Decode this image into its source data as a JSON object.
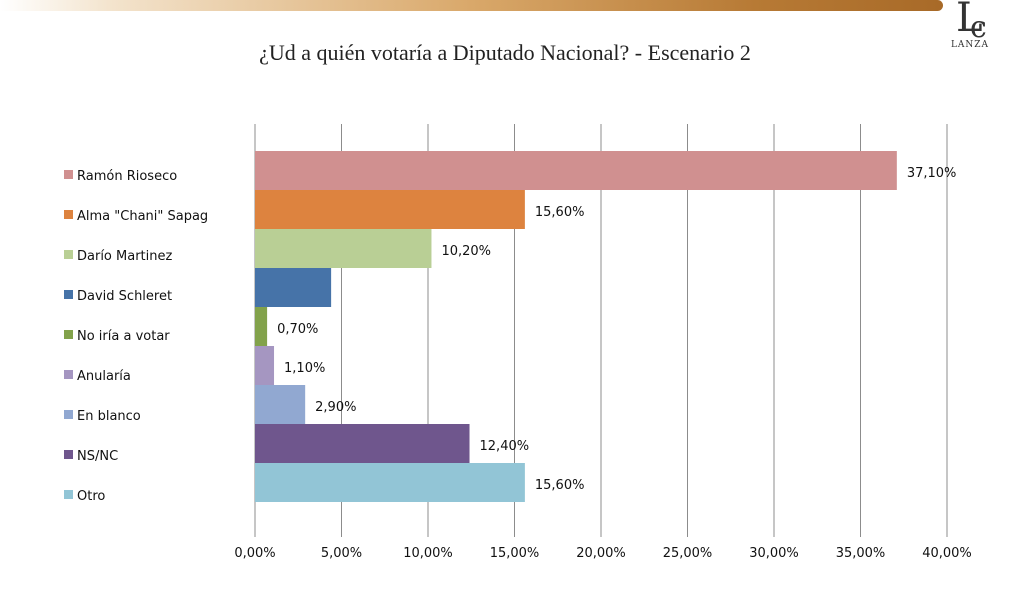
{
  "logo": {
    "text": "LANZA"
  },
  "chart_data": {
    "type": "bar",
    "orientation": "horizontal",
    "title": "¿Ud a quién votaría a Diputado Nacional? - Escenario 2",
    "categories": [
      "Ramón Rioseco",
      "Alma \"Chani\" Sapag",
      "Darío Martinez",
      "David Schleret",
      "No iría a votar",
      "Anularía",
      "En blanco",
      "NS/NC",
      "Otro"
    ],
    "values": [
      37.1,
      15.6,
      10.2,
      4.4,
      0.7,
      1.1,
      2.9,
      12.4,
      15.6
    ],
    "data_labels": [
      "37,10%",
      "15,60%",
      "10,20%",
      "",
      "0,70%",
      "1,10%",
      "2,90%",
      "12,40%",
      "15,60%"
    ],
    "colors": [
      "#d09090",
      "#dd833f",
      "#b9cf95",
      "#4673a8",
      "#82a24b",
      "#a596c1",
      "#91a8d1",
      "#6f568d",
      "#92c5d6"
    ],
    "xlim": [
      0,
      40
    ],
    "xticks": [
      0,
      5,
      10,
      15,
      20,
      25,
      30,
      35,
      40
    ],
    "xtick_labels": [
      "0,00%",
      "5,00%",
      "10,00%",
      "15,00%",
      "20,00%",
      "25,00%",
      "30,00%",
      "35,00%",
      "40,00%"
    ],
    "grid": true,
    "legend": "left"
  }
}
